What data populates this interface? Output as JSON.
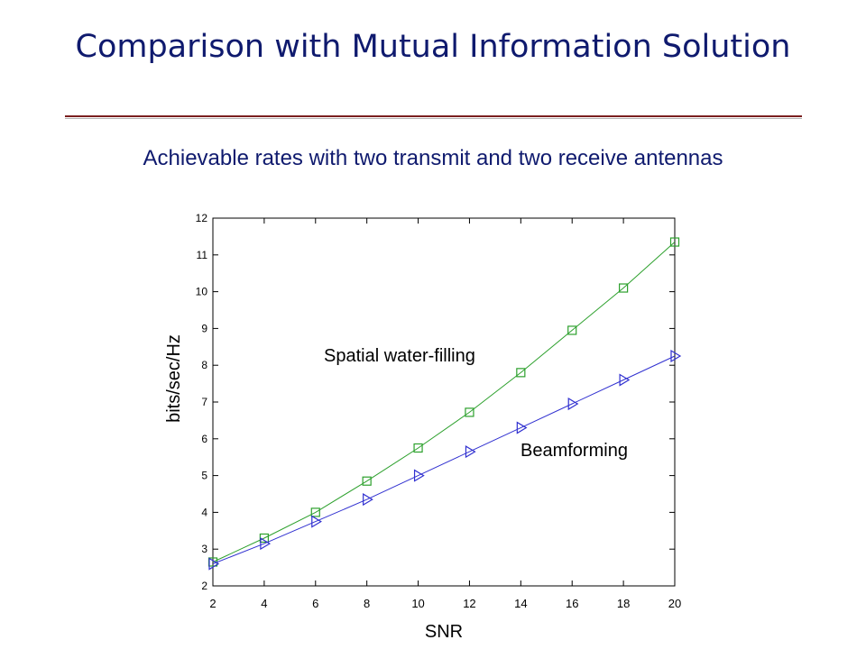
{
  "slide": {
    "title": "Comparison with Mutual Information Solution",
    "subtitle": "Achievable rates with two transmit and two receive antennas",
    "title_color": "#0f1a6e",
    "rule_color": "#7a1f1f"
  },
  "chart_data": {
    "type": "line",
    "title": "",
    "xlabel": "SNR",
    "ylabel": "bits/sec/Hz",
    "xlim": [
      2,
      20
    ],
    "ylim": [
      2,
      12
    ],
    "xticks": [
      2,
      4,
      6,
      8,
      10,
      12,
      14,
      16,
      18,
      20
    ],
    "yticks": [
      2,
      3,
      4,
      5,
      6,
      7,
      8,
      9,
      10,
      11,
      12
    ],
    "grid": false,
    "x": [
      2,
      4,
      6,
      8,
      10,
      12,
      14,
      16,
      18,
      20
    ],
    "series": [
      {
        "name": "Spatial water-filling",
        "marker": "square",
        "color": "#2ca02c",
        "values": [
          2.65,
          3.3,
          4.0,
          4.85,
          5.75,
          6.72,
          7.8,
          8.95,
          10.1,
          11.35
        ]
      },
      {
        "name": "Beamforming",
        "marker": "triangle-right",
        "color": "#3030d0",
        "values": [
          2.6,
          3.15,
          3.75,
          4.35,
          5.0,
          5.65,
          6.3,
          6.95,
          7.6,
          8.25
        ]
      }
    ],
    "annotations": [
      "Spatial water-filling",
      "Beamforming"
    ]
  }
}
